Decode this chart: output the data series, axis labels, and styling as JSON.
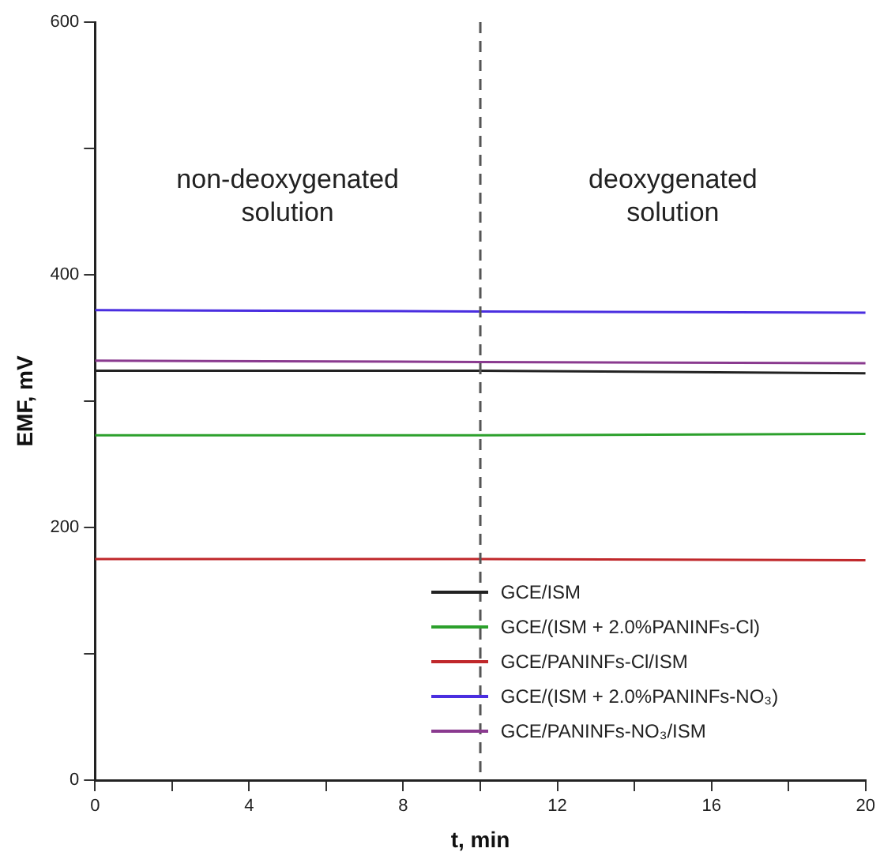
{
  "chart_data": {
    "type": "line",
    "xlabel": "t, min",
    "ylabel": "EMF, mV",
    "xlim": [
      0,
      20
    ],
    "xticks": [
      0,
      {
        "value": 2,
        "label": null
      },
      4,
      {
        "value": 6,
        "label": null
      },
      8,
      {
        "value": 10,
        "label": null
      },
      12,
      {
        "value": 14,
        "label": null
      },
      16,
      {
        "value": 18,
        "label": null
      },
      20
    ],
    "ylim": [
      0,
      600
    ],
    "yticks": [
      0,
      {
        "value": 100,
        "label": null
      },
      200,
      {
        "value": 300,
        "label": null
      },
      400,
      {
        "value": 500,
        "label": null
      },
      600
    ],
    "grid": false,
    "legend": "bottom right",
    "marker": "none",
    "line_style": "solid",
    "annotations": [
      "non-deoxygenated\nsolution",
      "deoxygenated\nsolution"
    ],
    "ref_lines": [
      {
        "axis": "x",
        "value": 10,
        "color": "#555555",
        "line_style": "dashed"
      }
    ],
    "series": [
      {
        "name": "GCE/ISM",
        "color": "#222222",
        "x": [
          0,
          10,
          20
        ],
        "values": [
          324,
          324,
          322
        ]
      },
      {
        "name": "GCE/(ISM + 2.0%PANINFs-Cl)",
        "color": "#2ca02c",
        "x": [
          0,
          10,
          20
        ],
        "values": [
          273,
          273,
          274
        ]
      },
      {
        "name": "GCE/PANINFs-Cl/ISM",
        "color": "#c0282b",
        "x": [
          0,
          10,
          20
        ],
        "values": [
          175,
          175,
          174
        ]
      },
      {
        "name": "GCE/(ISM + 2.0%PANINFs-NO₃)",
        "color": "#4a2ee0",
        "x": [
          0,
          10,
          20
        ],
        "values": [
          372,
          371,
          370
        ]
      },
      {
        "name": "GCE/PANINFs-NO₃/ISM",
        "color": "#8a3a8f",
        "x": [
          0,
          10,
          20
        ],
        "values": [
          332,
          331,
          330
        ]
      }
    ]
  }
}
